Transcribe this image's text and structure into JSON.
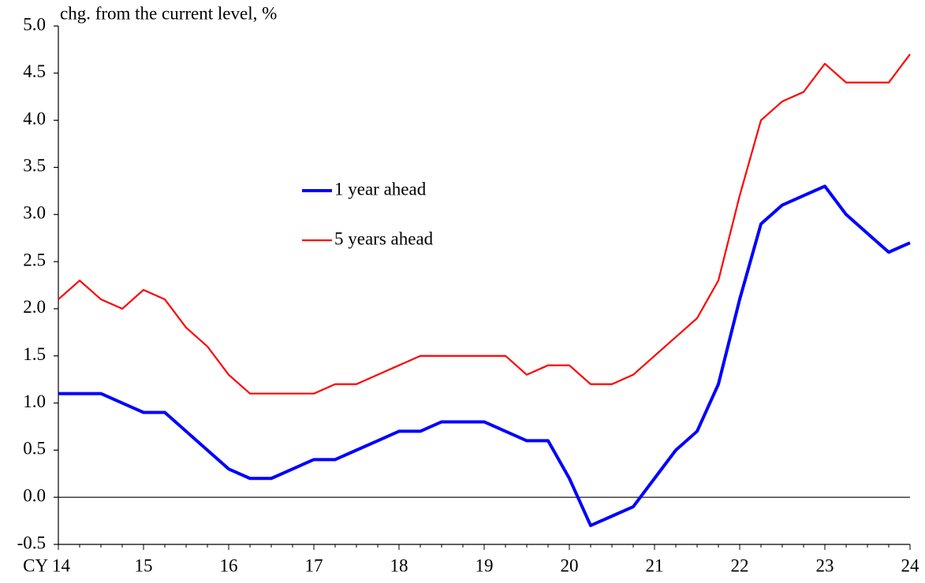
{
  "chart_data": {
    "type": "line",
    "y_label": "chg. from the current level, %",
    "categories": [
      "CY 14",
      null,
      null,
      null,
      "15",
      null,
      null,
      null,
      "16",
      null,
      null,
      null,
      "17",
      null,
      null,
      null,
      "18",
      null,
      null,
      null,
      "19",
      null,
      null,
      null,
      "20",
      null,
      null,
      null,
      "21",
      null,
      null,
      null,
      "22",
      null,
      null,
      null,
      "23",
      null,
      null,
      null,
      "24"
    ],
    "series": [
      {
        "name": "1 year ahead",
        "color": "#0000ff",
        "values": [
          1.1,
          1.1,
          1.1,
          1.0,
          0.9,
          0.9,
          0.7,
          0.5,
          0.3,
          0.2,
          0.2,
          0.3,
          0.4,
          0.4,
          0.5,
          0.6,
          0.7,
          0.7,
          0.8,
          0.8,
          0.8,
          0.7,
          0.6,
          0.6,
          0.2,
          -0.3,
          -0.2,
          -0.1,
          0.2,
          0.5,
          0.7,
          1.2,
          2.1,
          2.9,
          3.1,
          3.2,
          3.3,
          3.0,
          2.8,
          2.6,
          2.7
        ]
      },
      {
        "name": "5 years ahead",
        "color": "#ff0000",
        "values": [
          2.1,
          2.3,
          2.1,
          2.0,
          2.2,
          2.1,
          1.8,
          1.6,
          1.3,
          1.1,
          1.1,
          1.1,
          1.1,
          1.2,
          1.2,
          1.3,
          1.4,
          1.5,
          1.5,
          1.5,
          1.5,
          1.5,
          1.3,
          1.4,
          1.4,
          1.2,
          1.2,
          1.3,
          1.5,
          1.7,
          1.9,
          2.3,
          3.2,
          4.0,
          4.2,
          4.3,
          4.6,
          4.4,
          4.4,
          4.4,
          4.7
        ]
      }
    ],
    "ylim": [
      -0.5,
      5.0
    ],
    "yticks": [
      -0.5,
      {
        "value": 0,
        "label": "0.0"
      },
      0.5,
      {
        "value": 1,
        "label": "1.0"
      },
      1.5,
      {
        "value": 2,
        "label": "2.0"
      },
      2.5,
      {
        "value": 3,
        "label": "3.0"
      },
      3.5,
      {
        "value": 4,
        "label": "4.0"
      },
      4.5,
      {
        "value": 5,
        "label": "5.0"
      }
    ],
    "legend": "center"
  }
}
